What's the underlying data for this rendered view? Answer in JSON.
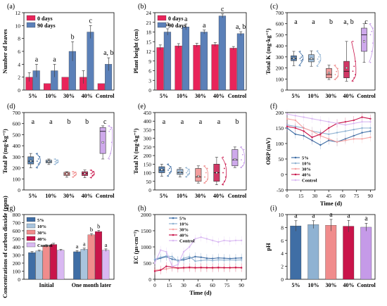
{
  "panels": [
    {
      "id": "a",
      "label": "(a)",
      "type": "bar",
      "ylabel": "Number of leaves",
      "ylim": [
        0,
        12
      ],
      "yticks": [
        0,
        2,
        4,
        6,
        8,
        10,
        12
      ],
      "categories": [
        "5%",
        "10%",
        "30%",
        "40%",
        "Control"
      ],
      "legend": [
        "0 days",
        "90 days"
      ],
      "series": [
        {
          "name": "0 days",
          "color": "#e8245a",
          "values": [
            2,
            1,
            2,
            2,
            1
          ],
          "errors": [
            0.7,
            0,
            0,
            1.0,
            0
          ]
        },
        {
          "name": "90 days",
          "color": "#5b80b8",
          "values": [
            3,
            3,
            6,
            9,
            4
          ],
          "errors": [
            1.0,
            1.0,
            1.5,
            1.0,
            1.0
          ]
        }
      ],
      "letters": [
        "a",
        "a",
        "b",
        "c",
        "a, b"
      ]
    },
    {
      "id": "b",
      "label": "(b)",
      "type": "bar",
      "ylabel": "Plant height (cm)",
      "ylim": [
        0,
        24
      ],
      "yticks": [
        0,
        3,
        6,
        9,
        12,
        15,
        18,
        21,
        24
      ],
      "categories": [
        "5%",
        "10%",
        "30%",
        "40%",
        "Control"
      ],
      "legend": [
        "0 days",
        "90 days"
      ],
      "series": [
        {
          "name": "0 days",
          "color": "#e8245a",
          "values": [
            13.2,
            13.7,
            13.9,
            14.1,
            13.0
          ],
          "errors": [
            0.8,
            0.7,
            0.6,
            0.6,
            0.5
          ]
        },
        {
          "name": "90 days",
          "color": "#5b80b8",
          "values": [
            18.0,
            19.6,
            18.0,
            23.0,
            17.5
          ],
          "errors": [
            1.0,
            0.9,
            0.6,
            0.6,
            0.6
          ]
        }
      ],
      "letters": [
        "a",
        "a",
        "a",
        "c",
        "a, b"
      ]
    },
    {
      "id": "c",
      "label": "(c)",
      "type": "box",
      "ylabel": "Total K (mg·kg⁻¹)",
      "ylim": [
        0,
        700
      ],
      "yticks": [
        0,
        100,
        200,
        300,
        400,
        500,
        600,
        700
      ],
      "categories": [
        "5%",
        "10%",
        "30%",
        "40%",
        "Control"
      ],
      "colors": [
        "#3f6ea5",
        "#8fb2d2",
        "#f08c8c",
        "#c9144a",
        "#c59ae8"
      ],
      "boxes": [
        {
          "min": 220,
          "q1": 265,
          "median": 285,
          "q3": 310,
          "max": 350,
          "mean": 288
        },
        {
          "min": 215,
          "q1": 255,
          "median": 280,
          "q3": 320,
          "max": 355,
          "mean": 285
        },
        {
          "min": 95,
          "q1": 110,
          "median": 140,
          "q3": 195,
          "max": 225,
          "mean": 155
        },
        {
          "min": 80,
          "q1": 110,
          "median": 170,
          "q3": 260,
          "max": 440,
          "mean": 200
        },
        {
          "min": 250,
          "q1": 350,
          "median": 500,
          "q3": 560,
          "max": 600,
          "mean": 440
        }
      ],
      "letters": [
        "a",
        "a",
        "b",
        "a, b",
        "c"
      ]
    },
    {
      "id": "d",
      "label": "(d)",
      "type": "box",
      "ylabel": "Total P (mg·kg⁻¹)",
      "ylim": [
        0,
        700
      ],
      "yticks": [
        0,
        100,
        200,
        300,
        400,
        500,
        600,
        700
      ],
      "categories": [
        "5%",
        "10%",
        "30%",
        "40%",
        "Control"
      ],
      "colors": [
        "#3f6ea5",
        "#8fb2d2",
        "#f08c8c",
        "#c9144a",
        "#c59ae8"
      ],
      "boxes": [
        {
          "min": 200,
          "q1": 235,
          "median": 260,
          "q3": 300,
          "max": 330,
          "mean": 262
        },
        {
          "min": 230,
          "q1": 245,
          "median": 255,
          "q3": 270,
          "max": 280,
          "mean": 257
        },
        {
          "min": 115,
          "q1": 130,
          "median": 145,
          "q3": 160,
          "max": 165,
          "mean": 146
        },
        {
          "min": 110,
          "q1": 130,
          "median": 148,
          "q3": 165,
          "max": 180,
          "mean": 148
        },
        {
          "min": 280,
          "q1": 330,
          "median": 530,
          "q3": 565,
          "max": 580,
          "mean": 430
        }
      ],
      "letters": [
        "a",
        "a",
        "b",
        "b",
        "c"
      ]
    },
    {
      "id": "e",
      "label": "(e)",
      "type": "box",
      "ylabel": "Total N (mg·kg⁻¹)",
      "ylim": [
        0,
        450
      ],
      "yticks": [
        0,
        50,
        100,
        150,
        200,
        250,
        300,
        350,
        400,
        450
      ],
      "categories": [
        "5%",
        "10%",
        "30%",
        "40%",
        "Control"
      ],
      "colors": [
        "#3f6ea5",
        "#8fb2d2",
        "#f08c8c",
        "#c9144a",
        "#c59ae8"
      ],
      "boxes": [
        {
          "min": 80,
          "q1": 100,
          "median": 115,
          "q3": 135,
          "max": 150,
          "mean": 118
        },
        {
          "min": 75,
          "q1": 90,
          "median": 100,
          "q3": 120,
          "max": 130,
          "mean": 105
        },
        {
          "min": 40,
          "q1": 50,
          "median": 75,
          "q3": 125,
          "max": 140,
          "mean": 80
        },
        {
          "min": 30,
          "q1": 50,
          "median": 100,
          "q3": 150,
          "max": 190,
          "mean": 100
        },
        {
          "min": 130,
          "q1": 140,
          "median": 175,
          "q3": 235,
          "max": 250,
          "mean": 178
        }
      ],
      "letters": [
        "a",
        "a",
        "a",
        "a",
        "b"
      ]
    },
    {
      "id": "f",
      "label": "(f)",
      "type": "line",
      "ylabel": "ORP (mV)",
      "xlabel": "Time (d)",
      "ylim": [
        -50,
        200
      ],
      "yticks": [
        -50,
        0,
        50,
        100,
        150,
        200
      ],
      "xlim": [
        0,
        95
      ],
      "xticks": [
        0,
        15,
        30,
        45,
        60,
        75,
        90
      ],
      "x": [
        0,
        9,
        18,
        27,
        36,
        45,
        54,
        63,
        72,
        81,
        90
      ],
      "series": [
        {
          "name": "5%",
          "color": "#3f6ea5",
          "values": [
            150,
            130,
            125,
            110,
            95,
            110,
            105,
            115,
            125,
            135,
            140
          ]
        },
        {
          "name": "10%",
          "color": "#8fb2d2",
          "values": [
            160,
            155,
            150,
            140,
            135,
            130,
            135,
            140,
            145,
            150,
            150
          ]
        },
        {
          "name": "30%",
          "color": "#f5a3a3",
          "values": [
            180,
            175,
            150,
            140,
            125,
            115,
            105,
            110,
            115,
            115,
            120
          ]
        },
        {
          "name": "40%",
          "color": "#c9144a",
          "values": [
            155,
            150,
            140,
            120,
            130,
            150,
            165,
            170,
            175,
            185,
            180
          ]
        },
        {
          "name": "Control",
          "color": "#d9b8f2",
          "values": [
            195,
            190,
            185,
            180,
            175,
            170,
            165,
            160,
            165,
            170,
            170
          ]
        }
      ]
    },
    {
      "id": "g",
      "label": "(g)",
      "type": "bar",
      "ylabel": "Concentrations of carbon dioxide (ppm)",
      "ylim": [
        0,
        800
      ],
      "yticks": [
        0,
        100,
        200,
        300,
        400,
        500,
        600,
        700,
        800
      ],
      "categories": [
        "Initial",
        "One month later"
      ],
      "legend": [
        "5%",
        "10%",
        "30%",
        "40%",
        "Control"
      ],
      "series": [
        {
          "name": "5%",
          "color": "#3f6ea5",
          "values": [
            330,
            340
          ],
          "errors": [
            12,
            15
          ]
        },
        {
          "name": "10%",
          "color": "#a9c4dd",
          "values": [
            350,
            370
          ],
          "errors": [
            10,
            15
          ]
        },
        {
          "name": "30%",
          "color": "#f08c8c",
          "values": [
            410,
            550
          ],
          "errors": [
            15,
            15
          ]
        },
        {
          "name": "40%",
          "color": "#c9144a",
          "values": [
            430,
            590
          ],
          "errors": [
            15,
            15
          ]
        },
        {
          "name": "Control",
          "color": "#d9b8f2",
          "values": [
            360,
            360
          ],
          "errors": [
            10,
            15
          ]
        }
      ],
      "letters": [
        [],
        [
          "a",
          "a",
          "b",
          "b",
          "a"
        ]
      ]
    },
    {
      "id": "h",
      "label": "(h)",
      "type": "line",
      "ylabel": "EC (µs·cm⁻¹)",
      "xlabel": "Time (d)",
      "ylim": [
        0,
        2000
      ],
      "yticks": [
        0,
        500,
        1000,
        1500,
        2000
      ],
      "xlim": [
        0,
        95
      ],
      "xticks": [
        0,
        15,
        30,
        45,
        60,
        75,
        90
      ],
      "x": [
        0,
        6,
        12,
        18,
        24,
        30,
        36,
        42,
        48,
        54,
        60,
        66,
        72,
        78,
        84,
        90
      ],
      "series": [
        {
          "name": "5%",
          "color": "#3f6ea5",
          "values": [
            600,
            650,
            700,
            620,
            580,
            600,
            650,
            700,
            680,
            650,
            640,
            660,
            650,
            640,
            650,
            660
          ]
        },
        {
          "name": "10%",
          "color": "#8fb2d2",
          "values": [
            620,
            680,
            720,
            700,
            560,
            650,
            700,
            560,
            580,
            600,
            580,
            600,
            590,
            600,
            590,
            600
          ]
        },
        {
          "name": "30%",
          "color": "#f5a3a3",
          "values": [
            280,
            300,
            320,
            350,
            330,
            340,
            350,
            340,
            350,
            345,
            340,
            345,
            350,
            345,
            350,
            350
          ]
        },
        {
          "name": "40%",
          "color": "#c9144a",
          "values": [
            250,
            280,
            400,
            380,
            350,
            360,
            370,
            360,
            365,
            360,
            360,
            365,
            360,
            360,
            365,
            360
          ]
        },
        {
          "name": "Control",
          "color": "#d9b8f2",
          "values": [
            500,
            900,
            850,
            400,
            450,
            850,
            1000,
            1250,
            1300,
            1250,
            1200,
            1150,
            1200,
            1180,
            1200,
            1200
          ]
        }
      ]
    },
    {
      "id": "i",
      "label": "(i)",
      "type": "bar",
      "ylabel": "pH",
      "ylim": [
        0,
        10
      ],
      "yticks": [
        0,
        2,
        4,
        6,
        8,
        10
      ],
      "categories": [
        "5%",
        "10%",
        "30%",
        "40%",
        "Control"
      ],
      "series": [
        {
          "name": "pH",
          "colors": [
            "#3f6ea5",
            "#8fb2d2",
            "#f08c8c",
            "#c9144a",
            "#c59ae8"
          ],
          "values": [
            8.25,
            8.45,
            8.35,
            8.2,
            8.05
          ],
          "errors": [
            0.8,
            0.6,
            0.9,
            0.9,
            0.6
          ]
        }
      ],
      "letters": [
        "a",
        "a",
        "a",
        "a",
        "a"
      ]
    }
  ]
}
